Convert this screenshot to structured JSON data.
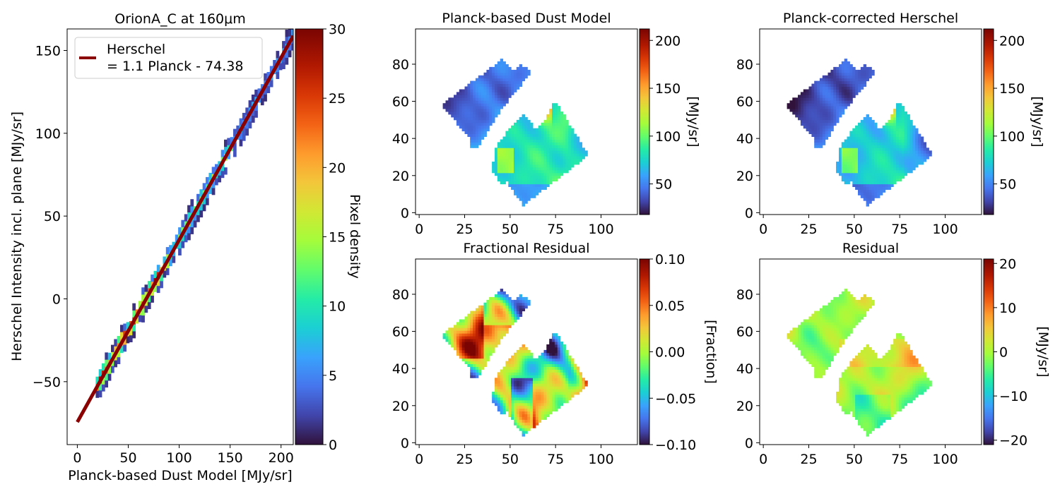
{
  "chart_data": [
    {
      "id": "scatter",
      "type": "heatmap",
      "title": "OrionA_C at 160μm",
      "xlabel": "Planck-based Dust Model [MJy/sr]",
      "ylabel": "Herschel Intensity incl. plane [MJy/sr]",
      "xlim": [
        -10,
        212
      ],
      "ylim": [
        -88,
        163
      ],
      "xticks": [
        "0",
        "50",
        "100",
        "150",
        "200"
      ],
      "yticks": [
        "−50",
        "0",
        "50",
        "100",
        "150"
      ],
      "fit": {
        "slope": 1.1,
        "intercept": -74.38,
        "x_range": [
          0,
          212
        ],
        "color": "#8b0000"
      },
      "legend": {
        "position": "top-left",
        "lines": [
          "Herschel",
          "= 1.1 Planck - 74.38"
        ]
      },
      "colorbar": {
        "label": "Pixel density",
        "range": [
          0,
          30
        ],
        "ticks": [
          "0",
          "5",
          "10",
          "15",
          "20",
          "25",
          "30"
        ],
        "colormap": "turbo"
      }
    },
    {
      "id": "dust",
      "type": "heatmap",
      "title": "Planck-based Dust Model",
      "xlim": [
        -2,
        120
      ],
      "ylim": [
        -1,
        99
      ],
      "xticks": [
        "0",
        "25",
        "50",
        "75",
        "100"
      ],
      "yticks": [
        "0",
        "20",
        "40",
        "60",
        "80"
      ],
      "colorbar": {
        "label": "[MJy/sr]",
        "range": [
          18,
          212
        ],
        "ticks": [
          "50",
          "100",
          "150",
          "200"
        ],
        "colormap": "turbo"
      }
    },
    {
      "id": "corrected",
      "type": "heatmap",
      "title": "Planck-corrected Herschel",
      "xlim": [
        -2,
        120
      ],
      "ylim": [
        -1,
        99
      ],
      "xticks": [
        "0",
        "25",
        "50",
        "75",
        "100"
      ],
      "yticks": [
        "0",
        "20",
        "40",
        "60",
        "80"
      ],
      "colorbar": {
        "label": "[MJy/sr]",
        "range": [
          18,
          212
        ],
        "ticks": [
          "50",
          "100",
          "150",
          "200"
        ],
        "colormap": "turbo"
      }
    },
    {
      "id": "frac",
      "type": "heatmap",
      "title": "Fractional Residual",
      "xlim": [
        -2,
        120
      ],
      "ylim": [
        -1,
        99
      ],
      "xticks": [
        "0",
        "25",
        "50",
        "75",
        "100"
      ],
      "yticks": [
        "0",
        "20",
        "40",
        "60",
        "80"
      ],
      "colorbar": {
        "label": "[Fraction]",
        "range": [
          -0.1,
          0.1
        ],
        "ticks": [
          "−0.10",
          "−0.05",
          "0.00",
          "0.05",
          "0.10"
        ],
        "colormap": "turbo"
      }
    },
    {
      "id": "resid",
      "type": "heatmap",
      "title": "Residual",
      "xlim": [
        -2,
        120
      ],
      "ylim": [
        -1,
        99
      ],
      "xticks": [
        "0",
        "25",
        "50",
        "75",
        "100"
      ],
      "yticks": [
        "0",
        "20",
        "40",
        "60",
        "80"
      ],
      "colorbar": {
        "label": "[MJy/sr]",
        "range": [
          -21,
          21
        ],
        "ticks": [
          "−20",
          "−10",
          "0",
          "10",
          "20"
        ],
        "colormap": "turbo"
      }
    }
  ]
}
